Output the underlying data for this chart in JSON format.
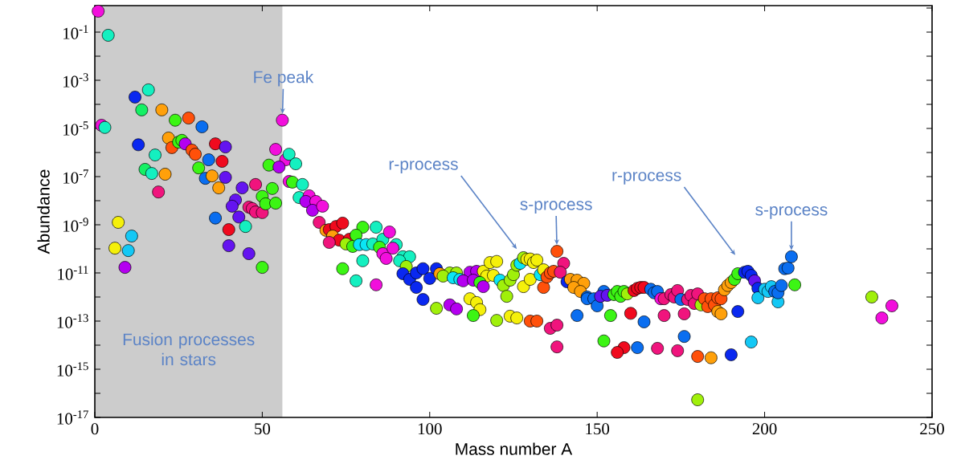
{
  "chart_data": {
    "type": "scatter",
    "xlabel": "Mass number A",
    "ylabel": "Abundance",
    "log": "y",
    "marker": "circle",
    "xlim": [
      0,
      250
    ],
    "xticks": [
      0,
      50,
      100,
      150,
      200,
      250
    ],
    "ylim": [
      1e-17,
      1.26
    ],
    "yticks": [
      {
        "value": 1e-17,
        "label": "10$^{-17}$"
      },
      {
        "value": 1e-16,
        "label": null
      },
      {
        "value": 1e-15,
        "label": "10$^{-15}$"
      },
      {
        "value": 1e-14,
        "label": null
      },
      {
        "value": 1e-13,
        "label": "10$^{-13}$"
      },
      {
        "value": 1e-12,
        "label": null
      },
      {
        "value": 1e-11,
        "label": "10$^{-11}$"
      },
      {
        "value": 1e-10,
        "label": null
      },
      {
        "value": 1e-09,
        "label": "10$^{-9}$"
      },
      {
        "value": 1e-08,
        "label": null
      },
      {
        "value": 1e-07,
        "label": "10$^{-7}$"
      },
      {
        "value": 1e-06,
        "label": null
      },
      {
        "value": 1e-05,
        "label": "10$^{-5}$"
      },
      {
        "value": 0.0001,
        "label": null
      },
      {
        "value": 0.001,
        "label": "10$^{-3}$"
      },
      {
        "value": 0.01,
        "label": null
      },
      {
        "value": 0.1,
        "label": "10$^{-1}$"
      },
      {
        "value": 1,
        "label": null
      }
    ],
    "bands": [
      {
        "axis": "x",
        "from": 0,
        "to": 56,
        "label": "Fusion processes in stars",
        "color": "#cccccc"
      }
    ],
    "annotations": [
      {
        "text": "Fe peak",
        "x": 56,
        "y": 2.2e-05
      },
      "r-process",
      {
        "text": "s-process",
        "x": 138,
        "y": 7.9e-11
      },
      "r-process",
      {
        "text": "s-process",
        "x": 208,
        "y": 4.7e-11
      }
    ],
    "x": [
      1,
      2,
      3,
      4,
      6,
      7,
      9,
      10,
      11,
      12,
      13,
      14,
      15,
      16,
      17,
      18,
      19,
      20,
      21,
      22,
      23,
      24,
      25,
      26,
      27,
      28,
      29,
      30,
      31,
      32,
      33,
      34,
      36,
      35,
      37,
      36,
      38,
      40,
      39,
      39,
      40,
      42,
      41,
      43,
      44,
      45,
      46,
      48,
      46,
      47,
      48,
      50,
      50,
      50,
      51,
      52,
      53,
      54,
      56,
      54,
      57,
      55,
      58,
      60,
      58,
      59,
      62,
      61,
      64,
      63,
      66,
      65,
      68,
      67,
      69,
      70,
      72,
      74,
      71,
      73,
      70,
      76,
      75,
      77,
      80,
      78,
      74,
      79,
      81,
      83,
      84,
      86,
      85,
      88,
      86,
      87,
      80,
      78,
      84,
      90,
      89,
      92,
      94,
      91,
      93,
      92,
      94,
      96,
      98,
      96,
      98,
      100,
      102,
      103,
      106,
      108,
      104,
      107,
      109,
      102,
      106,
      108,
      112,
      114,
      110,
      113,
      116,
      118,
      120,
      117,
      119,
      115,
      116,
      112,
      114,
      115,
      113,
      121,
      122,
      124,
      125,
      126,
      127,
      128,
      129,
      130,
      131,
      132,
      128,
      130,
      123,
      120,
      124,
      126,
      133,
      134,
      134,
      135,
      136,
      137,
      130,
      132,
      138,
      140,
      139,
      136,
      138,
      138,
      141,
      142,
      144,
      146,
      143,
      145,
      144,
      147,
      147,
      149,
      150,
      152,
      151,
      153,
      155,
      156,
      157,
      158,
      154,
      152,
      159,
      161,
      162,
      163,
      164,
      160,
      158,
      156,
      164,
      162,
      166,
      167,
      168,
      169,
      170,
      172,
      173,
      174,
      170,
      168,
      175,
      176,
      176,
      174,
      177,
      178,
      179,
      180,
      181,
      182,
      183,
      184,
      185,
      186,
      187,
      180,
      180,
      186,
      187,
      184,
      192,
      190,
      188,
      189,
      190,
      196,
      191,
      192,
      194,
      195,
      196,
      197,
      198,
      198,
      200,
      201,
      202,
      204,
      203,
      204,
      205,
      206,
      207,
      208,
      209,
      232,
      235,
      238
    ],
    "values": [
      0.74,
      1.35e-05,
      1.1e-05,
      0.074,
      1.07e-10,
      1.26e-09,
      1.7e-11,
      8.5e-11,
      3.4e-10,
      0.0002,
      2.1e-06,
      5.9e-05,
      2e-07,
      0.0004,
      1.35e-07,
      7.9e-07,
      2.3e-08,
      5.9e-05,
      1.26e-07,
      4e-06,
      1.6e-06,
      2.2e-05,
      2.7e-06,
      3.2e-06,
      2.3e-06,
      2.7e-05,
      1.26e-06,
      8.5e-07,
      2.3e-07,
      1.17e-05,
      8.5e-08,
      5e-07,
      1.9e-09,
      1.07e-07,
      3.4e-08,
      2.3e-06,
      4.3e-07,
      6.3e-10,
      1.7e-06,
      9.3e-08,
      1.35e-10,
      1.07e-08,
      5.9e-09,
      2.1e-09,
      3.4e-08,
      8.5e-10,
      6.3e-11,
      4.7e-08,
      5.4e-09,
      4.7e-09,
      3.4e-09,
      3.2e-09,
      1.7e-11,
      1.5e-08,
      7.4e-09,
      3e-07,
      3.2e-08,
      7.9e-09,
      2.2e-05,
      1.35e-06,
      5e-07,
      2.5e-07,
      8.5e-07,
      3.4e-07,
      6.3e-08,
      5.9e-08,
      4.7e-08,
      1.35e-08,
      1.6e-08,
      9.3e-09,
      9.3e-09,
      4e-09,
      5.9e-09,
      1.26e-09,
      5.9e-10,
      6.3e-10,
      8.5e-10,
      1.17e-09,
      3.4e-10,
      2.3e-10,
      1.85e-10,
      2.5e-10,
      1.6e-10,
      1.26e-10,
      7.9e-10,
      3.7e-10,
      1.5e-11,
      1.5e-10,
      1.5e-10,
      1.6e-10,
      7.9e-10,
      2.5e-10,
      1.17e-10,
      5e-10,
      6.3e-11,
      4e-11,
      3.2e-11,
      4.7e-12,
      3.2e-12,
      1.5e-10,
      1.07e-10,
      4.7e-11,
      4.7e-11,
      3.2e-11,
      1.85e-11,
      9.3e-12,
      5.4e-12,
      1e-11,
      1.5e-11,
      2.5e-12,
      7.9e-13,
      5.9e-12,
      1.5e-11,
      9.3e-12,
      1e-11,
      1e-11,
      7.4e-12,
      6.3e-12,
      5.4e-12,
      3.4e-13,
      4.7e-13,
      3.2e-13,
      1.07e-11,
      1.17e-11,
      4.7e-12,
      5e-12,
      1.17e-11,
      2.7e-11,
      3e-11,
      7.4e-12,
      7.9e-12,
      4e-12,
      2.7e-12,
      8.5e-13,
      5.9e-13,
      3e-13,
      1.7e-13,
      5e-12,
      3e-12,
      5e-12,
      8.5e-12,
      2.1e-11,
      2.5e-11,
      4.3e-11,
      3.7e-11,
      3.8e-11,
      2.7e-11,
      3.4e-11,
      2.7e-12,
      5.4e-12,
      1.07e-12,
      1.07e-13,
      1.6e-13,
      1.35e-13,
      8.5e-12,
      1.35e-11,
      2.5e-12,
      6.8e-12,
      1e-11,
      1.17e-11,
      1e-13,
      1e-13,
      7.9e-11,
      2.5e-11,
      1.07e-11,
      5e-14,
      6.8e-14,
      8.5e-15,
      4.3e-12,
      5.4e-12,
      5e-12,
      3.7e-12,
      2.5e-12,
      1.7e-12,
      1.7e-13,
      1e-12,
      8.5e-13,
      8.5e-13,
      4.3e-13,
      1.7e-12,
      1.07e-12,
      1.17e-12,
      1.26e-12,
      1.7e-12,
      1.07e-12,
      1.7e-12,
      1.7e-13,
      1.5e-14,
      1.35e-12,
      1.86e-12,
      2.3e-12,
      2.5e-12,
      2.5e-12,
      2.1e-13,
      7.9e-15,
      5e-15,
      9.3e-14,
      7.9e-15,
      2.1e-12,
      1.5e-12,
      1.7e-12,
      8.5e-13,
      8.5e-13,
      1.26e-12,
      1e-12,
      1.86e-12,
      1.7e-13,
      7.4e-15,
      7.9e-13,
      2e-13,
      2.3e-14,
      5.9e-15,
      7.9e-13,
      1.17e-12,
      5.4e-13,
      1.35e-12,
      4.7e-13,
      8.5e-13,
      4e-13,
      8.5e-13,
      4.7e-13,
      9.3e-13,
      8.5e-13,
      3.4e-15,
      5.4e-17,
      2.5e-13,
      2e-13,
      3e-15,
      2.5e-13,
      4e-15,
      2e-12,
      3e-12,
      4e-12,
      1.35e-14,
      5.4e-12,
      9.3e-12,
      1.07e-11,
      1.17e-11,
      7.9e-12,
      4.7e-12,
      2.3e-12,
      9.3e-13,
      2.1e-12,
      1.7e-12,
      2.7e-12,
      6.3e-13,
      1.7e-12,
      1.5e-12,
      3e-12,
      1.5e-11,
      1.6e-11,
      4.7e-11,
      3.2e-12,
      1e-12,
      1.35e-13,
      4.3e-13
    ],
    "colors": [
      "#f20fdc",
      "#f20fdc",
      "#14f0c0",
      "#14f0c0",
      "#f5f00a",
      "#f5f00a",
      "#b400f0",
      "#14c8f5",
      "#14c8f5",
      "#0a28f0",
      "#0a28f0",
      "#14f064",
      "#14f064",
      "#14f0c0",
      "#14f0c0",
      "#14f0c0",
      "#f0147d",
      "#ffa00a",
      "#ffa00a",
      "#ffa00a",
      "#ff500a",
      "#3cf514",
      "#3cf514",
      "#3cf514",
      "#b400f0",
      "#ff500a",
      "#ff500a",
      "#ff500a",
      "#3cf514",
      "#0a6ef0",
      "#0a6ef0",
      "#0a6ef0",
      "#0a6ef0",
      "#ffa00a",
      "#ffa00a",
      "#f00a1e",
      "#f00a1e",
      "#f00a1e",
      "#6414f0",
      "#6414f0",
      "#6414f0",
      "#6414f0",
      "#6414f0",
      "#6414f0",
      "#6414f0",
      "#14f0c0",
      "#6414f0",
      "#f0147d",
      "#f0147d",
      "#f0147d",
      "#f0147d",
      "#f0147d",
      "#3cf514",
      "#3cf514",
      "#3cf514",
      "#3cf514",
      "#3cf514",
      "#3cf514",
      "#f20fdc",
      "#f20fdc",
      "#f20fdc",
      "#b400f0",
      "#14f0c0",
      "#14f0c0",
      "#f20fdc",
      "#3cf514",
      "#14f0c0",
      "#14f0c0",
      "#f20fdc",
      "#b400f0",
      "#f20fdc",
      "#b400f0",
      "#f20fdc",
      "#f0147d",
      "#ffa00a",
      "#f00a1e",
      "#f00a1e",
      "#f00a1e",
      "#ffa00a",
      "#f00a1e",
      "#f0147d",
      "#f00a1e",
      "#a0f00a",
      "#3cf514",
      "#3cf514",
      "#3cf514",
      "#3cf514",
      "#0ae6f5",
      "#0ae6f5",
      "#14f0c0",
      "#14f0c0",
      "#14f0c0",
      "#3cf514",
      "#f20fdc",
      "#f20fdc",
      "#f20fdc",
      "#14f0c0",
      "#14f0c0",
      "#f20fdc",
      "#14f0c0",
      "#f20fdc",
      "#14f0c0",
      "#14f0c0",
      "#14f0c0",
      "#a0f00a",
      "#0a28f0",
      "#0a28f0",
      "#0a28f0",
      "#0a28f0",
      "#0a28f0",
      "#0a28f0",
      "#0a28f0",
      "#0a28f0",
      "#ffa00a",
      "#a0f00a",
      "#a0f00a",
      "#a0f00a",
      "#0ae6f5",
      "#0ae6f5",
      "#a0f00a",
      "#b400f0",
      "#b400f0",
      "#b400f0",
      "#b400f0",
      "#b400f0",
      "#b400f0",
      "#f5f00a",
      "#f5f00a",
      "#f5f00a",
      "#f5f00a",
      "#f5f00a",
      "#3cf514",
      "#b400f0",
      "#f5f00a",
      "#f5f00a",
      "#f5f00a",
      "#3cf514",
      "#0ae6f5",
      "#a0f00a",
      "#a0f00a",
      "#a0f00a",
      "#a0f00a",
      "#0ae6f5",
      "#a0f00a",
      "#f5f00a",
      "#f5f00a",
      "#f5f00a",
      "#f5f00a",
      "#f5f00a",
      "#f5f00a",
      "#a0f00a",
      "#a0f00a",
      "#f5f00a",
      "#f5f00a",
      "#0ae6f5",
      "#f5f00a",
      "#ff500a",
      "#ff500a",
      "#ff500a",
      "#ff500a",
      "#ff500a",
      "#ff500a",
      "#ff500a",
      "#f0147d",
      "#f0147d",
      "#f0147d",
      "#f0147d",
      "#f0147d",
      "#0a28f0",
      "#ffa00a",
      "#ffa00a",
      "#ffa00a",
      "#ffa00a",
      "#ffa00a",
      "#0a6ef0",
      "#0a6ef0",
      "#0a6ef0",
      "#0a6ef0",
      "#0a6ef0",
      "#0a6ef0",
      "#6414f0",
      "#6414f0",
      "#3cf514",
      "#3cf514",
      "#3cf514",
      "#3cf514",
      "#3cf514",
      "#3cf514",
      "#a0f00a",
      "#f00a1e",
      "#f00a1e",
      "#f00a1e",
      "#f00a1e",
      "#f00a1e",
      "#f00a1e",
      "#f00a1e",
      "#0a6ef0",
      "#0a6ef0",
      "#0a6ef0",
      "#0a6ef0",
      "#0a6ef0",
      "#f20fdc",
      "#f0147d",
      "#f0147d",
      "#f0147d",
      "#f0147d",
      "#f0147d",
      "#f0147d",
      "#0a6ef0",
      "#f0147d",
      "#0a6ef0",
      "#f0147d",
      "#f0147d",
      "#f0147d",
      "#f0147d",
      "#f0147d",
      "#a0f00a",
      "#ff500a",
      "#ff500a",
      "#ff500a",
      "#ff500a",
      "#ff500a",
      "#ff500a",
      "#ff500a",
      "#a0f00a",
      "#ffa00a",
      "#ffa00a",
      "#ffa00a",
      "#0a28f0",
      "#0a28f0",
      "#ffa00a",
      "#ffa00a",
      "#ffa00a",
      "#14c8f5",
      "#3cf514",
      "#3cf514",
      "#0a28f0",
      "#0a28f0",
      "#0a28f0",
      "#6414f0",
      "#0a28f0",
      "#14c8f5",
      "#14c8f5",
      "#14c8f5",
      "#14c8f5",
      "#14c8f5",
      "#0a6ef0",
      "#0a6ef0",
      "#0a6ef0",
      "#0a6ef0",
      "#0a6ef0",
      "#0a6ef0",
      "#3cf514",
      "#a0f00a",
      "#f20fdc",
      "#f20fdc"
    ]
  }
}
